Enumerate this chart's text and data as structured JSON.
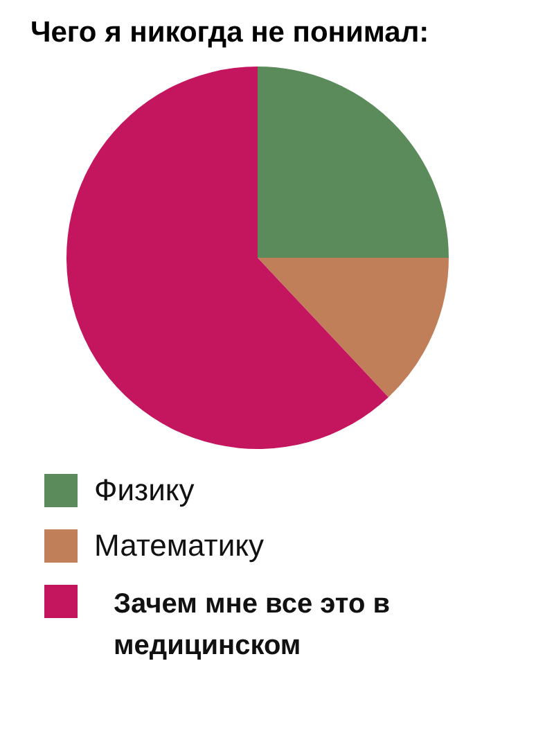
{
  "chart_data": {
    "type": "pie",
    "title": "Чего я никогда не понимал:",
    "categories": [
      "Физику",
      "Математику",
      "Зачем мне все это в медицинском"
    ],
    "values": [
      25,
      13,
      62
    ],
    "colors": [
      "#5b8a5b",
      "#c07f59",
      "#c4155f"
    ],
    "legend": "bottom"
  }
}
